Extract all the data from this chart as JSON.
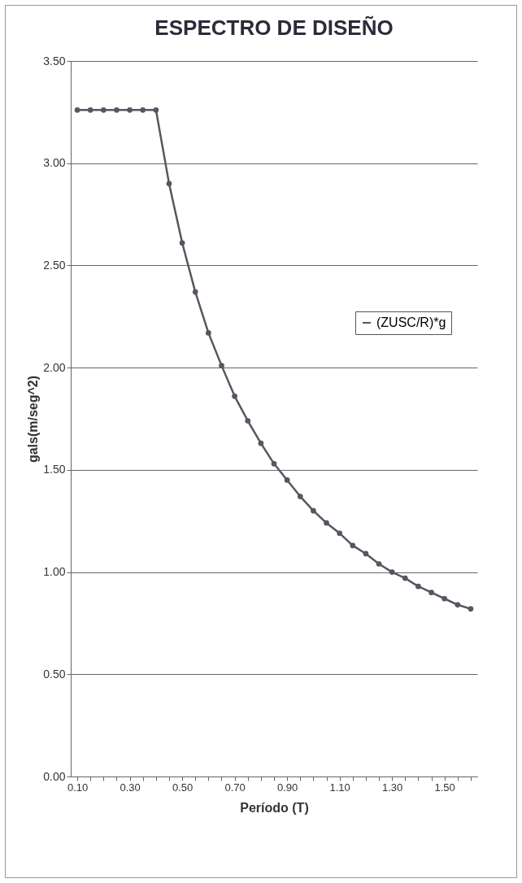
{
  "chart_data": {
    "type": "line",
    "title": "ESPECTRO DE DISEÑO",
    "xlabel": "Período (T)",
    "ylabel": "gals(m/seg^2)",
    "categories": [
      "0.10",
      null,
      null,
      null,
      "0.30",
      null,
      null,
      null,
      "0.50",
      null,
      null,
      null,
      "0.70",
      null,
      null,
      null,
      "0.90",
      null,
      null,
      null,
      "1.10",
      null,
      null,
      null,
      "1.30",
      null,
      null,
      null,
      "1.50",
      null,
      null
    ],
    "series": [
      {
        "name": "(ZUSC/R)*g",
        "color": "#5a5560",
        "values": [
          3.26,
          3.26,
          3.26,
          3.26,
          3.26,
          3.26,
          3.26,
          2.9,
          2.61,
          2.37,
          2.17,
          2.01,
          1.86,
          1.74,
          1.63,
          1.53,
          1.45,
          1.37,
          1.3,
          1.24,
          1.19,
          1.13,
          1.09,
          1.04,
          1.0,
          0.97,
          0.93,
          0.9,
          0.87,
          0.84,
          0.82
        ]
      }
    ],
    "ylim": [
      0,
      3.5
    ],
    "yticks": [
      {
        "value": 0,
        "label": "0.00"
      },
      {
        "value": 0.5,
        "label": "0.50"
      },
      {
        "value": 1,
        "label": "1.00"
      },
      {
        "value": 1.5,
        "label": "1.50"
      },
      {
        "value": 2,
        "label": "2.00"
      },
      {
        "value": 2.5,
        "label": "2.50"
      },
      {
        "value": 3,
        "label": "3.00"
      },
      {
        "value": 3.5,
        "label": "3.50"
      }
    ],
    "grid": "y",
    "legend": "right",
    "marker": "circle",
    "line_style": "solid"
  }
}
